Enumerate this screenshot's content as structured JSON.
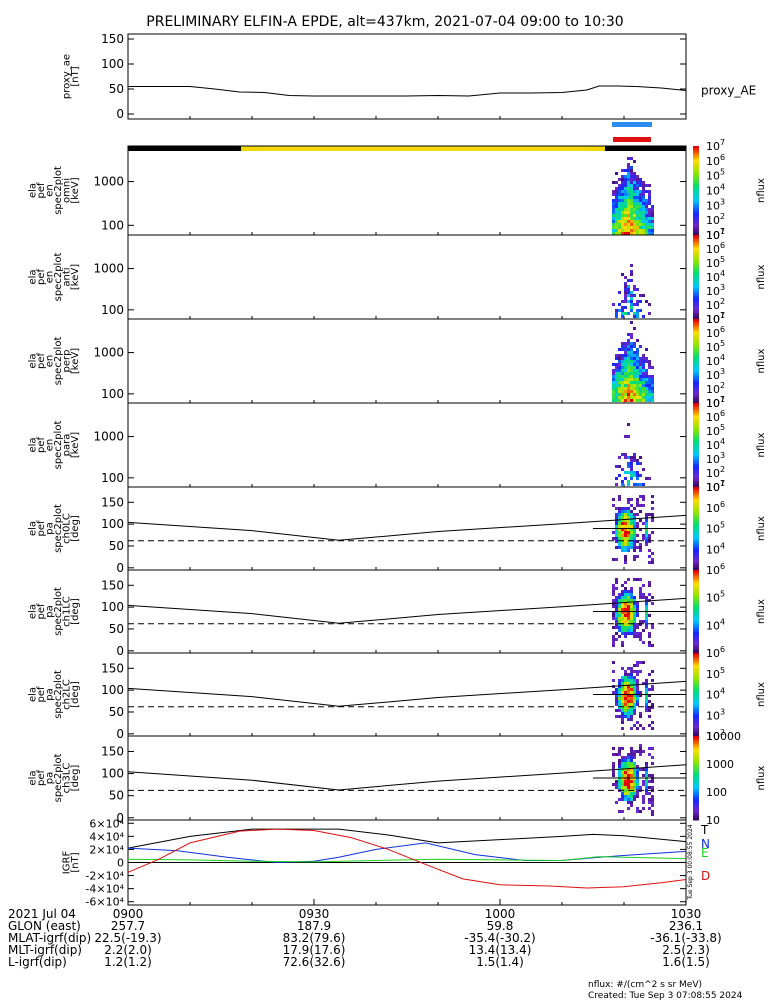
{
  "title": "PRELIMINARY ELFIN-A EPDE, alt=437km, 2021-07-04 09:00 to 10:30",
  "colors": {
    "trace": "#000000",
    "sun_bar": "#f2d800",
    "shadow_bar": "#000000",
    "sci_zone_blue": "#2a8cf0",
    "sci_zone_red": "#e01010",
    "grf_T": "#000000",
    "grf_N": "#1030e0",
    "grf_E": "#20d020",
    "grf_D": "#e01010"
  },
  "chart_data": [
    {
      "type": "line",
      "id": "proxy_ae",
      "ylabel_lines": [
        "proxy_ae",
        "[nT]"
      ],
      "ylim": [
        -10,
        160
      ],
      "yticks": [
        0,
        50,
        100,
        150
      ],
      "series": [
        {
          "name": "proxy_AE",
          "x": [
            0,
            5,
            10,
            14,
            18,
            22,
            26,
            30,
            35,
            40,
            45,
            50,
            55,
            60,
            65,
            70,
            74,
            76,
            79,
            82,
            86,
            90
          ],
          "y": [
            55,
            55,
            55,
            50,
            44,
            43,
            37,
            36,
            36,
            36,
            36,
            37,
            36,
            42,
            42,
            43,
            48,
            56,
            56,
            55,
            52,
            47
          ]
        }
      ]
    },
    {
      "type": "heatmap",
      "id": "ela_pef_en_spec2plot_omni",
      "ylabel_lines": [
        "ela",
        "pef",
        "en",
        "spec2plot",
        "omni",
        "[keV]"
      ],
      "yscale": "log",
      "ylim": [
        60,
        6500
      ],
      "yticks": [
        100,
        1000
      ],
      "colorbar": {
        "label": "nflux",
        "scale": "log",
        "range": [
          10,
          10000000
        ],
        "tick_exponents": [
          1,
          2,
          3,
          4,
          5,
          6,
          7
        ]
      },
      "intensity": "high"
    },
    {
      "type": "heatmap",
      "id": "ela_pef_en_spec2plot_anti",
      "ylabel_lines": [
        "ela",
        "pef",
        "en",
        "spec2plot",
        "anti",
        "[keV]"
      ],
      "yscale": "log",
      "ylim": [
        60,
        6500
      ],
      "yticks": [
        100,
        1000
      ],
      "colorbar": {
        "label": "nflux",
        "scale": "log",
        "range": [
          10,
          10000000
        ],
        "tick_exponents": [
          1,
          2,
          3,
          4,
          5,
          6,
          7
        ]
      },
      "intensity": "low"
    },
    {
      "type": "heatmap",
      "id": "ela_pef_en_spec2plot_perp",
      "ylabel_lines": [
        "ela",
        "pef",
        "en",
        "spec2plot",
        "perp",
        "[keV]"
      ],
      "yscale": "log",
      "ylim": [
        60,
        6500
      ],
      "yticks": [
        100,
        1000
      ],
      "colorbar": {
        "label": "nflux",
        "scale": "log",
        "range": [
          10,
          10000000
        ],
        "tick_exponents": [
          1,
          2,
          3,
          4,
          5,
          6,
          7
        ]
      },
      "intensity": "high"
    },
    {
      "type": "heatmap",
      "id": "ela_pef_en_spec2plot_para",
      "ylabel_lines": [
        "ela",
        "pef",
        "en",
        "spec2plot",
        "para",
        "[keV]"
      ],
      "yscale": "log",
      "ylim": [
        60,
        6500
      ],
      "yticks": [
        100,
        1000
      ],
      "colorbar": {
        "label": "nflux",
        "scale": "log",
        "range": [
          10,
          10000000
        ],
        "tick_exponents": [
          1,
          2,
          3,
          4,
          5,
          6,
          7
        ]
      },
      "intensity": "low"
    },
    {
      "type": "heatmap",
      "id": "ela_pef_pa_spec2plot_ch0LC",
      "ylabel_lines": [
        "ela",
        "pef",
        "pa",
        "spec2plot",
        "ch0LC",
        "[deg]"
      ],
      "ylim": [
        -5,
        185
      ],
      "yticks": [
        0,
        50,
        100,
        150
      ],
      "colorbar": {
        "label": "nflux",
        "scale": "log",
        "range": [
          1000,
          10000000
        ],
        "tick_exponents": [
          4,
          5,
          6,
          7
        ]
      },
      "overlay_solid": {
        "x": [
          0,
          20,
          34,
          50,
          70,
          90
        ],
        "y": [
          104,
          85,
          63,
          83,
          101,
          120
        ]
      },
      "overlay_dashed": {
        "x": [
          0,
          20,
          34,
          50,
          70,
          90
        ],
        "y": [
          62,
          62,
          62,
          62,
          62,
          62
        ]
      },
      "overlay_hline": 90
    },
    {
      "type": "heatmap",
      "id": "ela_pef_pa_spec2plot_ch1LC",
      "ylabel_lines": [
        "ela",
        "pef",
        "pa",
        "spec2plot",
        "ch1LC",
        "[deg]"
      ],
      "ylim": [
        -5,
        185
      ],
      "yticks": [
        0,
        50,
        100,
        150
      ],
      "colorbar": {
        "label": "nflux",
        "scale": "log",
        "range": [
          1000,
          1000000
        ],
        "tick_exponents": [
          4,
          5,
          6
        ]
      },
      "overlay_solid": {
        "x": [
          0,
          20,
          34,
          50,
          70,
          90
        ],
        "y": [
          104,
          85,
          63,
          83,
          101,
          120
        ]
      },
      "overlay_dashed": {
        "x": [
          0,
          20,
          34,
          50,
          70,
          90
        ],
        "y": [
          62,
          62,
          62,
          62,
          62,
          62
        ]
      },
      "overlay_hline": 90
    },
    {
      "type": "heatmap",
      "id": "ela_pef_pa_spec2plot_ch2LC",
      "ylabel_lines": [
        "ela",
        "pef",
        "pa",
        "spec2plot",
        "ch2LC",
        "[deg]"
      ],
      "ylim": [
        -5,
        185
      ],
      "yticks": [
        0,
        50,
        100,
        150
      ],
      "colorbar": {
        "label": "nflux",
        "scale": "log",
        "range": [
          100,
          1000000
        ],
        "tick_exponents": [
          2,
          3,
          4,
          5,
          6
        ]
      },
      "overlay_solid": {
        "x": [
          0,
          20,
          34,
          50,
          70,
          90
        ],
        "y": [
          104,
          85,
          63,
          83,
          101,
          120
        ]
      },
      "overlay_dashed": {
        "x": [
          0,
          20,
          34,
          50,
          70,
          90
        ],
        "y": [
          62,
          62,
          62,
          62,
          62,
          62
        ]
      },
      "overlay_hline": 90
    },
    {
      "type": "heatmap",
      "id": "ela_pef_pa_spec2plot_ch3LC",
      "ylabel_lines": [
        "ela",
        "pef",
        "pa",
        "spec2plot",
        "ch3LC",
        "[deg]"
      ],
      "ylim": [
        -5,
        185
      ],
      "yticks": [
        0,
        50,
        100,
        150
      ],
      "colorbar": {
        "label": "nflux",
        "scale": "log",
        "range": [
          10,
          10000
        ],
        "tick_labels": [
          "10",
          "100",
          "1000",
          "10000"
        ]
      },
      "overlay_solid": {
        "x": [
          0,
          20,
          34,
          50,
          70,
          90
        ],
        "y": [
          104,
          85,
          63,
          83,
          101,
          120
        ]
      },
      "overlay_dashed": {
        "x": [
          0,
          20,
          34,
          50,
          70,
          90
        ],
        "y": [
          62,
          62,
          62,
          62,
          62,
          62
        ]
      },
      "overlay_hline": 90
    },
    {
      "type": "line",
      "id": "igrf",
      "ylabel_lines": [
        "IGRF",
        "[nT]"
      ],
      "ylim": [
        -65000,
        65000
      ],
      "yticks": [
        -60000,
        -40000,
        -20000,
        0,
        20000,
        40000,
        60000
      ],
      "ytick_labels": [
        "-6×10⁴",
        "-4×10⁴",
        "-2×10⁴",
        "0",
        "2×10⁴",
        "4×10⁴",
        "6×10⁴"
      ],
      "series": [
        {
          "name": "T",
          "x": [
            0,
            10,
            20,
            28,
            34,
            42,
            50,
            60,
            70,
            75,
            80,
            90
          ],
          "y": [
            22000,
            40000,
            51000,
            51000,
            51000,
            42000,
            30000,
            35000,
            40000,
            43000,
            41000,
            32000
          ]
        },
        {
          "name": "N",
          "x": [
            0,
            8,
            16,
            24,
            30,
            34,
            40,
            48,
            56,
            64,
            70,
            76,
            82,
            90
          ],
          "y": [
            22000,
            18000,
            8000,
            0,
            2000,
            8000,
            20000,
            30000,
            12000,
            3000,
            3000,
            8000,
            12000,
            17000
          ]
        },
        {
          "name": "E",
          "x": [
            0,
            10,
            20,
            30,
            40,
            50,
            60,
            70,
            76,
            80,
            90
          ],
          "y": [
            5000,
            4000,
            2000,
            1000,
            3000,
            5000,
            4000,
            3000,
            9000,
            8000,
            6000
          ]
        },
        {
          "name": "D",
          "x": [
            0,
            5,
            10,
            18,
            24,
            30,
            36,
            42,
            48,
            54,
            60,
            68,
            74,
            80,
            86,
            90
          ],
          "y": [
            -15000,
            5000,
            30000,
            48000,
            51000,
            49000,
            38000,
            20000,
            -3000,
            -25000,
            -34000,
            -36000,
            -39000,
            -37000,
            -31000,
            -26000
          ]
        }
      ]
    }
  ],
  "xaxis": {
    "range_minutes": [
      0,
      90
    ],
    "ticks": [
      {
        "t": 0,
        "label": "0900"
      },
      {
        "t": 30,
        "label": "0930"
      },
      {
        "t": 60,
        "label": "1000"
      },
      {
        "t": 90,
        "label": "1030"
      }
    ]
  },
  "ephemeris": {
    "rows": [
      {
        "label": "2021 Jul 04",
        "values": [
          "",
          "",
          "",
          ""
        ]
      },
      {
        "label": "GLON (east)",
        "values": [
          "257.7",
          "187.9",
          "59.8",
          "236.1"
        ]
      },
      {
        "label": "MLAT-igrf(dip)",
        "values": [
          "22.5(-19.3)",
          "83.2(79.6)",
          "-35.4(-30.2)",
          "-36.1(-33.8)"
        ]
      },
      {
        "label": "MLT-igrf(dip)",
        "values": [
          "2.2(2.0)",
          "17.9(17.6)",
          "13.4(13.4)",
          "2.5(2.3)"
        ]
      },
      {
        "label": "L-igrf(dip)",
        "values": [
          "1.2(1.2)",
          "72.6(32.6)",
          "1.5(1.4)",
          "1.6(1.5)"
        ]
      }
    ]
  },
  "series_label_right": "proxy_AE",
  "igrf_legend": [
    "T",
    "N",
    "E",
    "D"
  ],
  "footer": {
    "units": "nflux: #/(cm^2 s sr MeV)",
    "created": "Created: Tue Sep  3 07:08:55 2024",
    "side_stamp": "Tue Sep  3 00:08:55 2024"
  }
}
